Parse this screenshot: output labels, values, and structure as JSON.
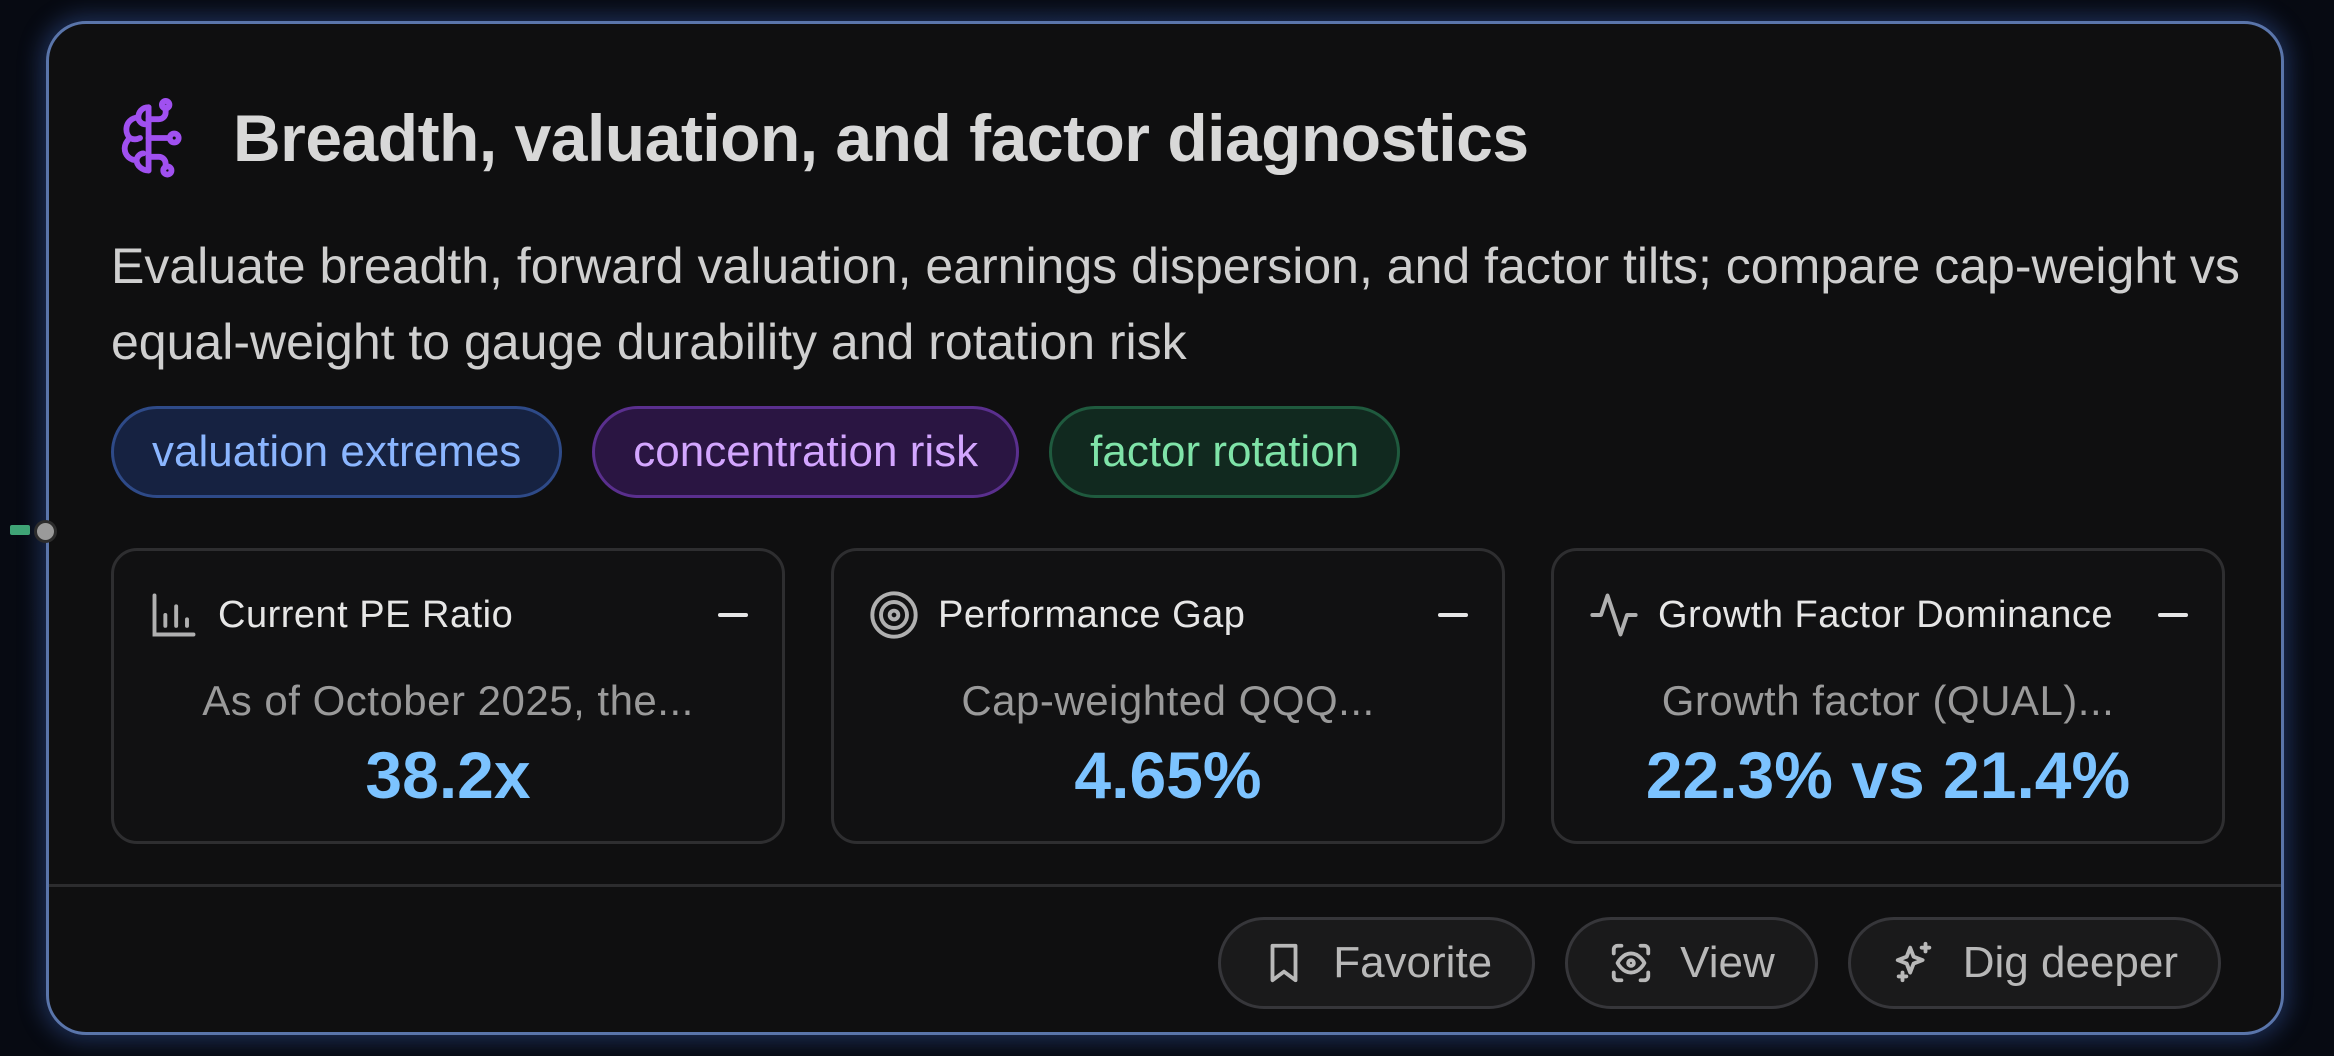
{
  "card": {
    "title": "Breadth, valuation, and factor diagnostics",
    "title_icon": "brain-circuit-icon",
    "description": "Evaluate breadth, forward valuation, earnings dispersion, and factor tilts; compare cap-weight vs equal-weight to gauge durability and rotation risk",
    "accent_color": "#a050f0",
    "border_color": "#5a75aa"
  },
  "tags": [
    {
      "label": "valuation extremes",
      "color": "#8bb6ff"
    },
    {
      "label": "concentration risk",
      "color": "#d3a6ff"
    },
    {
      "label": "factor rotation",
      "color": "#7fe3a8"
    }
  ],
  "metrics": [
    {
      "title": "Current PE Ratio",
      "icon": "bar-chart-icon",
      "description": "As of October 2025, the...",
      "value": "38.2x"
    },
    {
      "title": "Performance Gap",
      "icon": "target-icon",
      "description": "Cap-weighted QQQ...",
      "value": "4.65%"
    },
    {
      "title": "Growth Factor Dominance",
      "icon": "activity-icon",
      "description": "Growth factor (QUAL)...",
      "value": "22.3% vs 21.4%"
    }
  ],
  "value_color": "#7cc3ff",
  "actions": {
    "favorite": {
      "label": "Favorite",
      "icon": "bookmark-icon"
    },
    "view": {
      "label": "View",
      "icon": "eye-scan-icon"
    },
    "dig_deeper": {
      "label": "Dig deeper",
      "icon": "sparkles-icon"
    }
  }
}
